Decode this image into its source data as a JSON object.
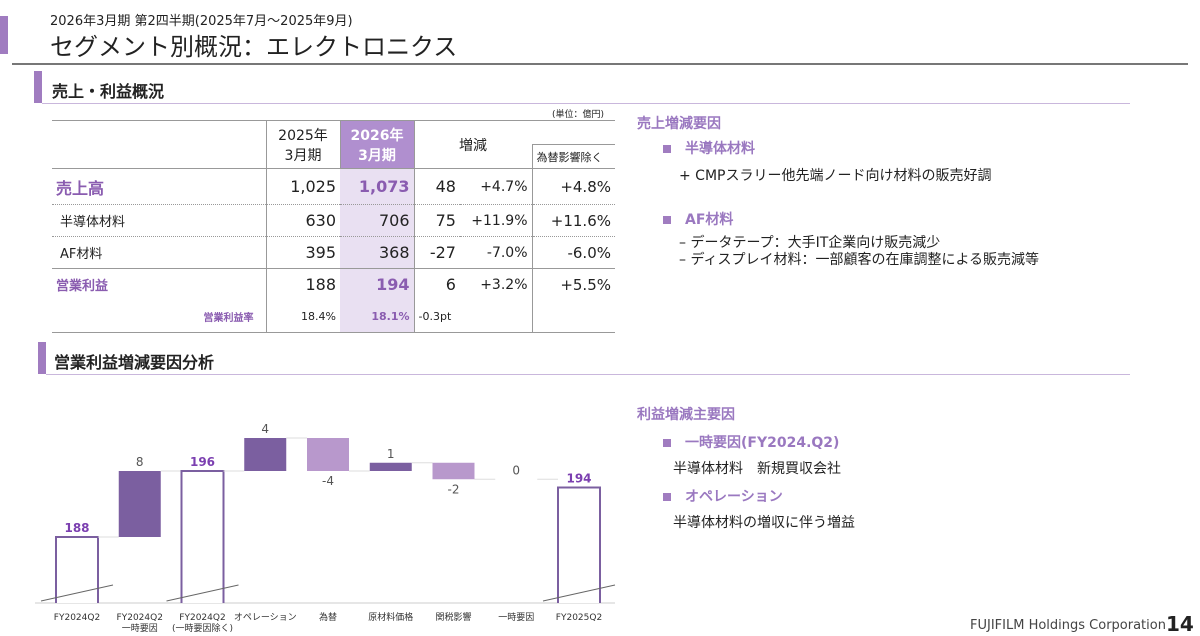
{
  "header": {
    "period": "2026年3月期 第2四半期(2025年7月～2025年9月)",
    "title": "セグメント別概況：エレクトロニクス"
  },
  "section1": {
    "title": "売上・利益概況",
    "unit": "(単位：億円)"
  },
  "table": {
    "headers": {
      "prev": [
        "2025年",
        "3月期"
      ],
      "curr": [
        "2026年",
        "3月期"
      ],
      "change": "増減",
      "fx": "為替影響除く"
    },
    "rows": [
      {
        "label": "売上高",
        "prev": "1,025",
        "curr": "1,073",
        "diff": "48",
        "pct": "+4.7%",
        "fx": "+4.8%"
      },
      {
        "label": "半導体材料",
        "prev": "630",
        "curr": "706",
        "diff": "75",
        "pct": "+11.9%",
        "fx": "+11.6%"
      },
      {
        "label": "AF材料",
        "prev": "395",
        "curr": "368",
        "diff": "-27",
        "pct": "-7.0%",
        "fx": "-6.0%"
      },
      {
        "label": "営業利益",
        "prev": "188",
        "curr": "194",
        "diff": "6",
        "pct": "+3.2%",
        "fx": "+5.5%"
      },
      {
        "label": "営業利益率",
        "prev": "18.4%",
        "curr": "18.1%",
        "diff": "-0.3pt",
        "pct": "",
        "fx": ""
      }
    ]
  },
  "sales_factors": {
    "title": "売上増減要因",
    "groups": [
      {
        "heading": "半導体材料",
        "lines": [
          "+ CMPスラリー他先端ノード向け材料の販売好調"
        ]
      },
      {
        "heading": "AF材料",
        "lines": [
          "– データテープ：大手IT企業向け販売減少",
          "– ディスプレイ材料：一部顧客の在庫調整による販売減等"
        ]
      }
    ]
  },
  "section2": {
    "title": "営業利益増減要因分析"
  },
  "profit_factors": {
    "title": "利益増減主要因",
    "groups": [
      {
        "heading": "一時要因(FY2024.Q2)",
        "lines": [
          "半導体材料　新規買収会社"
        ]
      },
      {
        "heading": "オペレーション",
        "lines": [
          "半導体材料の増収に伴う増益"
        ]
      }
    ]
  },
  "footer": {
    "company": "FUJIFILM Holdings Corporation",
    "page": "14"
  },
  "chart_data": {
    "type": "waterfall",
    "categories": [
      "FY2024Q2",
      "FY2024Q2 一時要因",
      "FY2024Q2 (一時要因除く)",
      "オペレーション",
      "為替",
      "原材料価格",
      "関税影響",
      "一時要因",
      "FY2025Q2"
    ],
    "values": [
      188,
      8,
      196,
      4,
      -4,
      1,
      -2,
      0,
      194
    ],
    "kinds": [
      "total",
      "delta",
      "total",
      "delta",
      "delta",
      "delta",
      "delta",
      "delta",
      "total"
    ],
    "labels": [
      "188",
      "8",
      "196",
      "4",
      "-4",
      "1",
      "-2",
      "0",
      "194"
    ],
    "colors": {
      "total_border": "#7b5fa0",
      "total_label": "#7b3fb0",
      "increase": "#7b5fa0",
      "decrease": "#b898cc"
    }
  }
}
